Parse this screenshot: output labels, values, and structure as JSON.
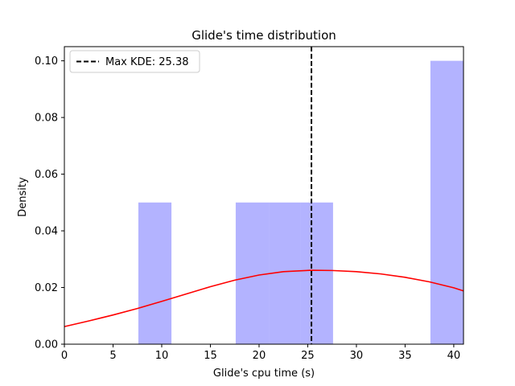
{
  "chart_data": {
    "type": "bar",
    "title": "Glide's time distribution",
    "xlabel": "Glide's cpu time (s)",
    "ylabel": "Density",
    "xlim": [
      0,
      41
    ],
    "ylim": [
      0,
      0.105
    ],
    "xticks": [
      0,
      5,
      10,
      15,
      20,
      25,
      30,
      35,
      40
    ],
    "yticks": [
      0.0,
      0.02,
      0.04,
      0.06,
      0.08,
      0.1
    ],
    "xtick_labels": [
      "0",
      "5",
      "10",
      "15",
      "20",
      "25",
      "30",
      "35",
      "40"
    ],
    "ytick_labels": [
      "0.00",
      "0.02",
      "0.04",
      "0.06",
      "0.08",
      "0.10"
    ],
    "histogram": {
      "color": "#b3b3ff",
      "bins": [
        {
          "x0": 7.6,
          "x1": 11.0,
          "density": 0.05
        },
        {
          "x0": 17.6,
          "x1": 21.0,
          "density": 0.05
        },
        {
          "x0": 21.0,
          "x1": 24.3,
          "density": 0.05
        },
        {
          "x0": 24.3,
          "x1": 27.6,
          "density": 0.05
        },
        {
          "x0": 37.6,
          "x1": 41.0,
          "density": 0.1
        }
      ]
    },
    "kde": {
      "color": "#ff0000",
      "x": [
        0,
        2.5,
        5,
        7.5,
        10,
        12.5,
        15,
        17.5,
        20,
        22.5,
        25.38,
        27.5,
        30,
        32.5,
        35,
        37.5,
        40,
        41
      ],
      "y": [
        0.0062,
        0.0082,
        0.0103,
        0.0126,
        0.0151,
        0.0177,
        0.0203,
        0.0226,
        0.0244,
        0.0256,
        0.0261,
        0.026,
        0.0256,
        0.0248,
        0.0236,
        0.022,
        0.0199,
        0.0188
      ]
    },
    "max_kde_line": {
      "x": 25.38,
      "color": "#000000",
      "style": "dashed"
    },
    "legend": {
      "placement": "top-left",
      "entries": [
        "Max KDE: 25.38"
      ]
    },
    "grid": false
  }
}
